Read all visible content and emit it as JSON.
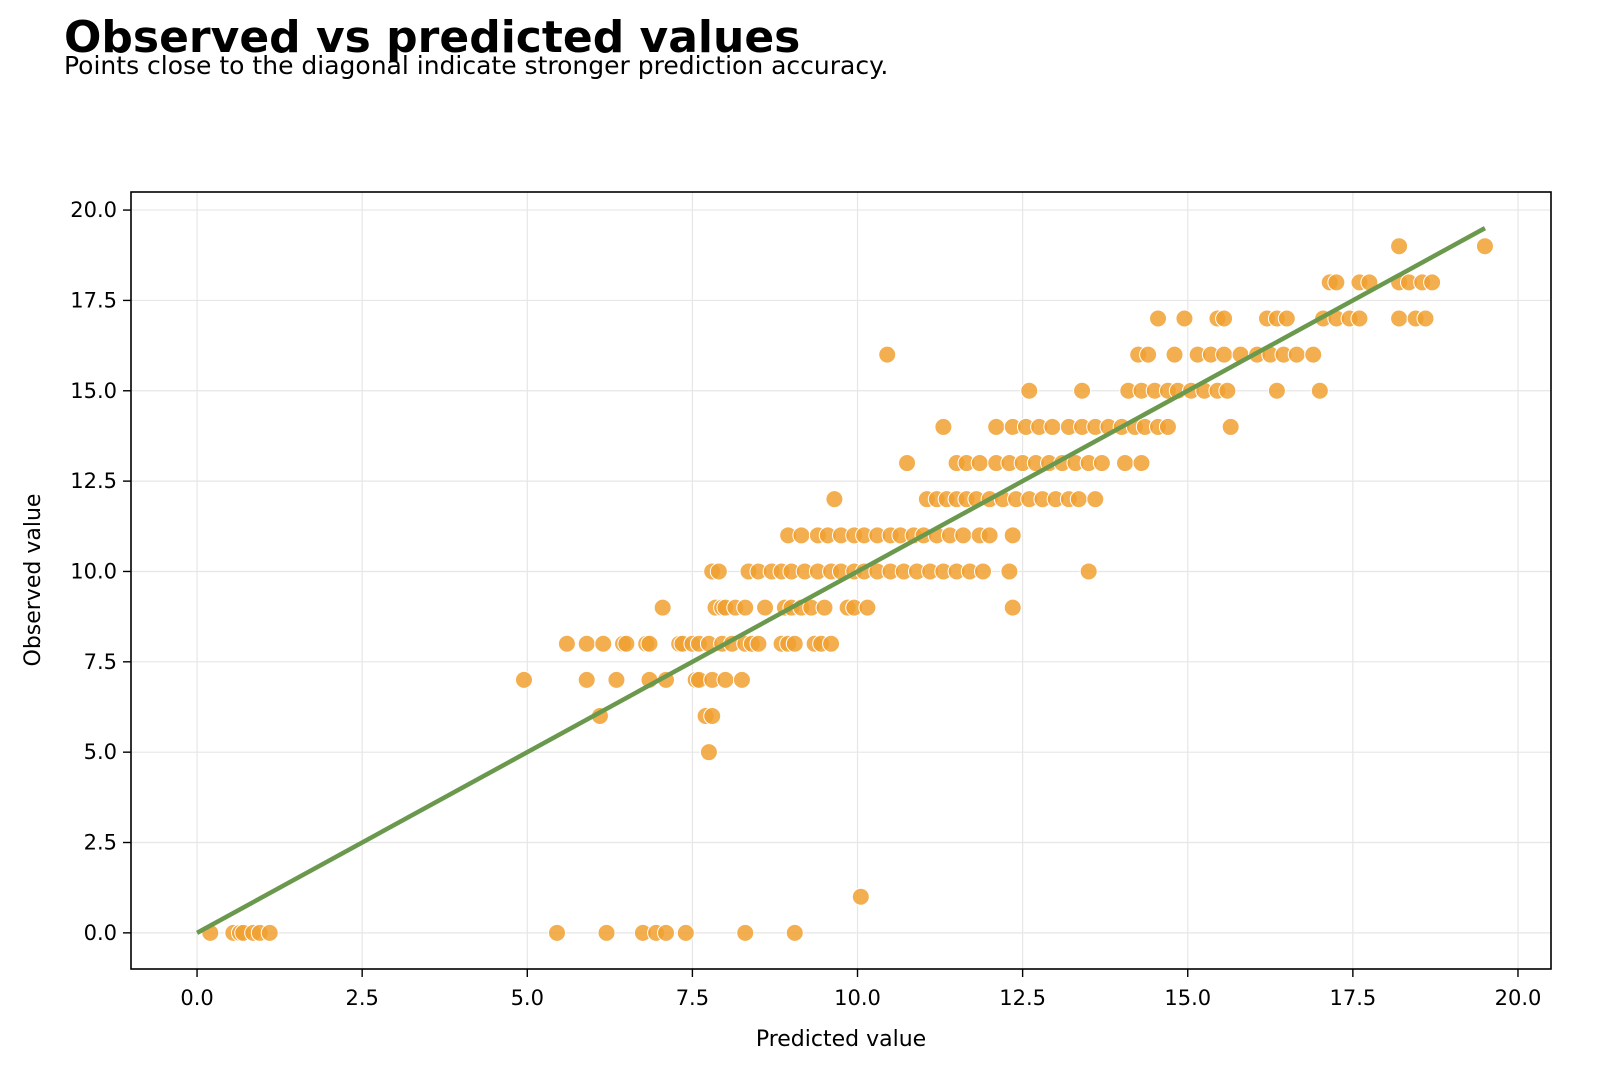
{
  "title": "Observed vs predicted values",
  "subtitle": "Points close to the diagonal indicate stronger prediction accuracy.",
  "colors": {
    "points": "#f0a030",
    "point_edge": "#ffffff",
    "fit_line": "#6a994e",
    "grid": "#e6e6e6",
    "frame": "#000000"
  },
  "chart_data": {
    "type": "scatter",
    "xlabel": "Predicted value",
    "ylabel": "Observed value",
    "xlim": [
      -1.0,
      20.5
    ],
    "ylim": [
      -1.0,
      20.5
    ],
    "grid": true,
    "x_ticks": [
      "0.0",
      "2.5",
      "5.0",
      "7.5",
      "10.0",
      "12.5",
      "15.0",
      "17.5",
      "20.0"
    ],
    "y_ticks": [
      "0.0",
      "2.5",
      "5.0",
      "7.5",
      "10.0",
      "12.5",
      "15.0",
      "17.5",
      "20.0"
    ],
    "reference_line": {
      "x": [
        0,
        19.5
      ],
      "y": [
        0,
        19.5
      ]
    },
    "points": [
      [
        0.2,
        0
      ],
      [
        0.55,
        0
      ],
      [
        0.65,
        0
      ],
      [
        0.7,
        0
      ],
      [
        0.85,
        0
      ],
      [
        0.95,
        0
      ],
      [
        1.1,
        0
      ],
      [
        5.45,
        0
      ],
      [
        6.2,
        0
      ],
      [
        6.75,
        0
      ],
      [
        6.95,
        0
      ],
      [
        7.1,
        0
      ],
      [
        7.4,
        0
      ],
      [
        8.3,
        0
      ],
      [
        9.05,
        0
      ],
      [
        10.05,
        1
      ],
      [
        7.75,
        5
      ],
      [
        6.1,
        6
      ],
      [
        7.7,
        6
      ],
      [
        7.8,
        6
      ],
      [
        4.95,
        7
      ],
      [
        5.9,
        7
      ],
      [
        6.35,
        7
      ],
      [
        6.85,
        7
      ],
      [
        7.1,
        7
      ],
      [
        7.55,
        7
      ],
      [
        7.6,
        7
      ],
      [
        7.8,
        7
      ],
      [
        8.0,
        7
      ],
      [
        8.25,
        7
      ],
      [
        5.6,
        8
      ],
      [
        5.9,
        8
      ],
      [
        6.15,
        8
      ],
      [
        6.45,
        8
      ],
      [
        6.5,
        8
      ],
      [
        6.8,
        8
      ],
      [
        6.85,
        8
      ],
      [
        7.3,
        8
      ],
      [
        7.35,
        8
      ],
      [
        7.5,
        8
      ],
      [
        7.6,
        8
      ],
      [
        7.75,
        8
      ],
      [
        7.95,
        8
      ],
      [
        8.1,
        8
      ],
      [
        8.3,
        8
      ],
      [
        8.4,
        8
      ],
      [
        8.5,
        8
      ],
      [
        8.85,
        8
      ],
      [
        8.95,
        8
      ],
      [
        9.05,
        8
      ],
      [
        9.35,
        8
      ],
      [
        9.45,
        8
      ],
      [
        9.6,
        8
      ],
      [
        7.05,
        9
      ],
      [
        7.85,
        9
      ],
      [
        7.95,
        9
      ],
      [
        8.0,
        9
      ],
      [
        8.15,
        9
      ],
      [
        8.3,
        9
      ],
      [
        8.6,
        9
      ],
      [
        8.9,
        9
      ],
      [
        9.0,
        9
      ],
      [
        9.15,
        9
      ],
      [
        9.3,
        9
      ],
      [
        9.5,
        9
      ],
      [
        9.85,
        9
      ],
      [
        9.95,
        9
      ],
      [
        10.15,
        9
      ],
      [
        12.35,
        9
      ],
      [
        7.8,
        10
      ],
      [
        7.9,
        10
      ],
      [
        8.35,
        10
      ],
      [
        8.5,
        10
      ],
      [
        8.7,
        10
      ],
      [
        8.85,
        10
      ],
      [
        9.0,
        10
      ],
      [
        9.2,
        10
      ],
      [
        9.4,
        10
      ],
      [
        9.6,
        10
      ],
      [
        9.75,
        10
      ],
      [
        9.95,
        10
      ],
      [
        10.1,
        10
      ],
      [
        10.3,
        10
      ],
      [
        10.5,
        10
      ],
      [
        10.7,
        10
      ],
      [
        10.9,
        10
      ],
      [
        11.1,
        10
      ],
      [
        11.3,
        10
      ],
      [
        11.5,
        10
      ],
      [
        11.7,
        10
      ],
      [
        11.9,
        10
      ],
      [
        12.3,
        10
      ],
      [
        13.5,
        10
      ],
      [
        8.95,
        11
      ],
      [
        9.15,
        11
      ],
      [
        9.4,
        11
      ],
      [
        9.55,
        11
      ],
      [
        9.75,
        11
      ],
      [
        9.95,
        11
      ],
      [
        10.1,
        11
      ],
      [
        10.3,
        11
      ],
      [
        10.5,
        11
      ],
      [
        10.65,
        11
      ],
      [
        10.85,
        11
      ],
      [
        11.0,
        11
      ],
      [
        11.2,
        11
      ],
      [
        11.4,
        11
      ],
      [
        11.6,
        11
      ],
      [
        11.85,
        11
      ],
      [
        12.0,
        11
      ],
      [
        12.35,
        11
      ],
      [
        9.65,
        12
      ],
      [
        11.05,
        12
      ],
      [
        11.2,
        12
      ],
      [
        11.35,
        12
      ],
      [
        11.5,
        12
      ],
      [
        11.65,
        12
      ],
      [
        11.8,
        12
      ],
      [
        12.0,
        12
      ],
      [
        12.2,
        12
      ],
      [
        12.4,
        12
      ],
      [
        12.6,
        12
      ],
      [
        12.8,
        12
      ],
      [
        13.0,
        12
      ],
      [
        13.2,
        12
      ],
      [
        13.35,
        12
      ],
      [
        13.6,
        12
      ],
      [
        10.75,
        13
      ],
      [
        11.5,
        13
      ],
      [
        11.65,
        13
      ],
      [
        11.85,
        13
      ],
      [
        12.1,
        13
      ],
      [
        12.3,
        13
      ],
      [
        12.5,
        13
      ],
      [
        12.7,
        13
      ],
      [
        12.9,
        13
      ],
      [
        13.1,
        13
      ],
      [
        13.3,
        13
      ],
      [
        13.5,
        13
      ],
      [
        13.7,
        13
      ],
      [
        14.05,
        13
      ],
      [
        14.3,
        13
      ],
      [
        11.3,
        14
      ],
      [
        12.1,
        14
      ],
      [
        12.35,
        14
      ],
      [
        12.55,
        14
      ],
      [
        12.75,
        14
      ],
      [
        12.95,
        14
      ],
      [
        13.2,
        14
      ],
      [
        13.4,
        14
      ],
      [
        13.6,
        14
      ],
      [
        13.8,
        14
      ],
      [
        14.0,
        14
      ],
      [
        14.2,
        14
      ],
      [
        14.35,
        14
      ],
      [
        14.55,
        14
      ],
      [
        14.7,
        14
      ],
      [
        15.65,
        14
      ],
      [
        12.6,
        15
      ],
      [
        13.4,
        15
      ],
      [
        14.1,
        15
      ],
      [
        14.3,
        15
      ],
      [
        14.5,
        15
      ],
      [
        14.7,
        15
      ],
      [
        14.85,
        15
      ],
      [
        15.05,
        15
      ],
      [
        15.25,
        15
      ],
      [
        15.45,
        15
      ],
      [
        15.6,
        15
      ],
      [
        16.35,
        15
      ],
      [
        17.0,
        15
      ],
      [
        10.45,
        16
      ],
      [
        14.25,
        16
      ],
      [
        14.4,
        16
      ],
      [
        14.8,
        16
      ],
      [
        15.15,
        16
      ],
      [
        15.35,
        16
      ],
      [
        15.55,
        16
      ],
      [
        15.8,
        16
      ],
      [
        16.05,
        16
      ],
      [
        16.25,
        16
      ],
      [
        16.45,
        16
      ],
      [
        16.65,
        16
      ],
      [
        16.9,
        16
      ],
      [
        14.55,
        17
      ],
      [
        14.95,
        17
      ],
      [
        15.45,
        17
      ],
      [
        15.55,
        17
      ],
      [
        16.2,
        17
      ],
      [
        16.35,
        17
      ],
      [
        16.5,
        17
      ],
      [
        17.05,
        17
      ],
      [
        17.25,
        17
      ],
      [
        17.45,
        17
      ],
      [
        17.6,
        17
      ],
      [
        18.2,
        17
      ],
      [
        18.45,
        17
      ],
      [
        18.6,
        17
      ],
      [
        17.15,
        18
      ],
      [
        17.25,
        18
      ],
      [
        17.6,
        18
      ],
      [
        17.75,
        18
      ],
      [
        18.2,
        18
      ],
      [
        18.35,
        18
      ],
      [
        18.55,
        18
      ],
      [
        18.7,
        18
      ],
      [
        18.2,
        19
      ],
      [
        19.5,
        19
      ]
    ]
  }
}
